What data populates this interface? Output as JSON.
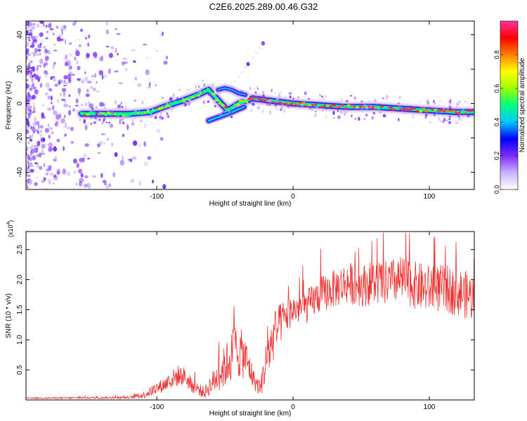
{
  "page_title": "C2E6.2025.289.00.46.G32",
  "chart_data": [
    {
      "type": "heatmap",
      "name": "spectrogram",
      "xlabel": "Height of straight line (km)",
      "ylabel": "Frequency (Hz)",
      "xlim": [
        -196,
        133
      ],
      "ylim": [
        -50,
        48
      ],
      "xticks": [
        -100,
        0,
        100
      ],
      "xtick_labels": [
        "-100",
        "0",
        "100"
      ],
      "yticks": [
        40,
        20,
        0,
        -20,
        -40
      ],
      "ytick_labels": [
        "40",
        "20",
        "0",
        "-20",
        "-40"
      ],
      "ridge": {
        "x": [
          -155,
          -140,
          -120,
          -105,
          -95,
          -80,
          -70,
          -62,
          -55,
          -48,
          -40,
          -30,
          -20,
          -10,
          0,
          20,
          40,
          60,
          80,
          100,
          120,
          133
        ],
        "freq": [
          -6,
          -6,
          -6,
          -5,
          -2,
          2,
          5,
          8,
          2,
          -4,
          0,
          3,
          2,
          1,
          0,
          -1,
          -2,
          -2,
          -3,
          -4,
          -5,
          -5
        ]
      },
      "secondary_ridge": {
        "x": [
          -55,
          -50,
          -45,
          -40,
          -35
        ],
        "freq": [
          8,
          9,
          8,
          6,
          5
        ]
      },
      "outliers": [
        {
          "x": -22,
          "freq": 35
        },
        {
          "x": -33,
          "freq": 23
        }
      ],
      "noise_region_x": [
        -196,
        -120
      ]
    },
    {
      "type": "colorbar",
      "name": "colorbar",
      "label": "Normalized spectral amplitude",
      "range": [
        0.0,
        1.0
      ],
      "ticks": [
        0.0,
        0.2,
        0.4,
        0.6,
        0.8
      ],
      "tick_labels": [
        "0.0",
        "0.2",
        "0.4",
        "0.6",
        "0.8"
      ],
      "colors": [
        "#ffffff",
        "#c8b2ff",
        "#7a2dff",
        "#0000ff",
        "#00c8ff",
        "#00ff80",
        "#9cff00",
        "#ffff00",
        "#ff8000",
        "#ff0000",
        "#ff3399"
      ]
    },
    {
      "type": "line",
      "name": "snr",
      "xlabel": "Height of straight line (km)",
      "ylabel": "SNR (10 * v/v)",
      "scale_label": "(x10",
      "scale_exponent": "4",
      "xlim": [
        -196,
        133
      ],
      "ylim": [
        0.0,
        2.8
      ],
      "xticks": [
        -100,
        0,
        100
      ],
      "xtick_labels": [
        "-100",
        "0",
        "100"
      ],
      "yticks": [
        0.5,
        1.0,
        1.5,
        2.0,
        2.5
      ],
      "ytick_labels": [
        "0.5",
        "1.0",
        "1.5",
        "2.0",
        "2.5"
      ],
      "color": "#ee3333",
      "envelope": {
        "x": [
          -196,
          -120,
          -110,
          -95,
          -85,
          -80,
          -75,
          -65,
          -50,
          -42,
          -35,
          -28,
          -24,
          -20,
          -15,
          -10,
          -5,
          0,
          10,
          20,
          30,
          40,
          50,
          60,
          70,
          80,
          90,
          100,
          110,
          120,
          133
        ],
        "mean": [
          0.03,
          0.04,
          0.08,
          0.25,
          0.4,
          0.4,
          0.25,
          0.12,
          0.55,
          0.85,
          0.7,
          0.3,
          0.2,
          0.6,
          1.0,
          1.25,
          1.4,
          1.5,
          1.55,
          1.75,
          1.85,
          1.95,
          1.9,
          1.95,
          1.95,
          2.0,
          1.9,
          1.85,
          1.85,
          1.8,
          1.7
        ],
        "spread": [
          0.01,
          0.02,
          0.06,
          0.12,
          0.18,
          0.15,
          0.12,
          0.1,
          0.35,
          0.5,
          0.35,
          0.15,
          0.15,
          0.35,
          0.4,
          0.35,
          0.3,
          0.25,
          0.28,
          0.3,
          0.32,
          0.35,
          0.35,
          0.38,
          0.38,
          0.4,
          0.4,
          0.4,
          0.4,
          0.4,
          0.4
        ]
      }
    }
  ]
}
